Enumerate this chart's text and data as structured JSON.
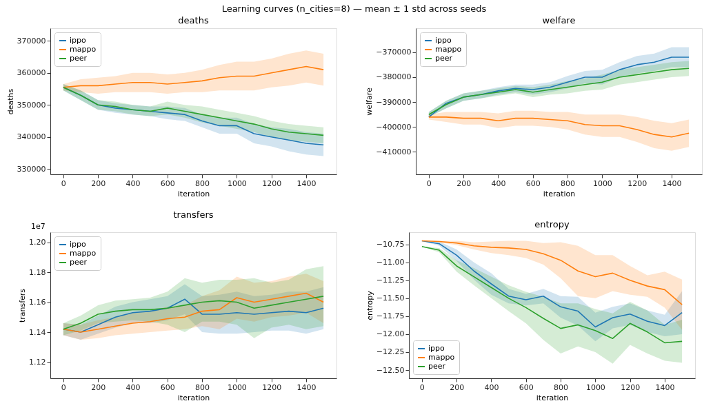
{
  "chart_data": [
    {
      "type": "line",
      "title": "deaths",
      "xlabel": "iteration",
      "ylabel": "deaths",
      "annotations": [
        "Learning curves (n_cities=8) — mean ± 1 std across seeds"
      ],
      "legend": "top left",
      "grid": false,
      "xlim": [
        -75,
        1575
      ],
      "xticks": [
        0,
        200,
        400,
        600,
        800,
        1000,
        1200,
        1400
      ],
      "ylim": [
        328300,
        373950
      ],
      "yticks": [
        330000,
        340000,
        350000,
        360000,
        370000
      ],
      "x": [
        0,
        100,
        200,
        300,
        400,
        500,
        600,
        700,
        800,
        900,
        1000,
        1100,
        1200,
        1300,
        1400,
        1500
      ],
      "series": [
        {
          "name": "ippo",
          "color": "#1f77b4",
          "values": [
            355500,
            353000,
            350000,
            349000,
            348500,
            348000,
            347500,
            347000,
            345000,
            343500,
            343500,
            341000,
            340000,
            339000,
            338000,
            337500
          ],
          "lower": [
            354500,
            351500,
            348500,
            347500,
            347000,
            346500,
            345500,
            345000,
            343000,
            341000,
            341000,
            338000,
            337000,
            335500,
            334500,
            334000
          ],
          "upper": [
            356500,
            354500,
            351500,
            350500,
            350000,
            349500,
            349500,
            349000,
            347000,
            346000,
            346000,
            344000,
            343000,
            342500,
            341500,
            341000
          ]
        },
        {
          "name": "mappo",
          "color": "#ff7f0e",
          "values": [
            355500,
            356000,
            356000,
            356500,
            357000,
            357000,
            356500,
            357000,
            357500,
            358500,
            359000,
            359000,
            360000,
            361000,
            362000,
            361000
          ],
          "lower": [
            354500,
            354000,
            353500,
            354000,
            354000,
            354000,
            353500,
            354000,
            354000,
            354500,
            354500,
            354500,
            355500,
            356000,
            357000,
            356000
          ],
          "upper": [
            356500,
            358000,
            358500,
            359000,
            360000,
            360000,
            359500,
            360000,
            361000,
            362500,
            363500,
            363500,
            364500,
            366000,
            367000,
            366000
          ]
        },
        {
          "name": "peer",
          "color": "#2ca02c",
          "values": [
            355500,
            353000,
            350000,
            349500,
            348500,
            348000,
            349000,
            348000,
            347000,
            346000,
            345000,
            344000,
            342500,
            341500,
            341000,
            340500
          ],
          "lower": [
            354500,
            351500,
            348500,
            348000,
            347000,
            346500,
            347000,
            346000,
            344500,
            343500,
            342500,
            341500,
            340000,
            339000,
            338500,
            338000
          ],
          "upper": [
            356500,
            354500,
            351500,
            351000,
            350000,
            349500,
            351000,
            350000,
            349500,
            348500,
            347500,
            346500,
            345000,
            344000,
            343500,
            343000
          ]
        }
      ]
    },
    {
      "type": "line",
      "title": "welfare",
      "xlabel": "iteration",
      "ylabel": "welfare",
      "legend": "top left",
      "grid": false,
      "xlim": [
        -75,
        1575
      ],
      "xticks": [
        0,
        200,
        400,
        600,
        800,
        1000,
        1200,
        1400
      ],
      "ylim": [
        -419000,
        -360370
      ],
      "yticks": [
        {
          "value": -410000,
          "label": "−410000"
        },
        {
          "value": -400000,
          "label": "−400000"
        },
        {
          "value": -390000,
          "label": "−390000"
        },
        {
          "value": -380000,
          "label": "−380000"
        },
        {
          "value": -370000,
          "label": "−370000"
        }
      ],
      "x": [
        0,
        100,
        200,
        300,
        400,
        500,
        600,
        700,
        800,
        900,
        1000,
        1100,
        1200,
        1300,
        1400,
        1500
      ],
      "series": [
        {
          "name": "ippo",
          "color": "#1f77b4",
          "values": [
            -396000,
            -390500,
            -388000,
            -387000,
            -385500,
            -384500,
            -385000,
            -384000,
            -382000,
            -380000,
            -380000,
            -377000,
            -375000,
            -374000,
            -372000,
            -372000
          ],
          "lower": [
            -396000,
            -392500,
            -389500,
            -388500,
            -387000,
            -386000,
            -387000,
            -386000,
            -384500,
            -382500,
            -383000,
            -380000,
            -378500,
            -377500,
            -376000,
            -376000
          ],
          "upper": [
            -394000,
            -389500,
            -386500,
            -385500,
            -384000,
            -383000,
            -383000,
            -382000,
            -379500,
            -377500,
            -377000,
            -374000,
            -371500,
            -370500,
            -368000,
            -368000
          ]
        },
        {
          "name": "mappo",
          "color": "#ff7f0e",
          "values": [
            -396000,
            -396000,
            -396500,
            -396500,
            -397500,
            -396500,
            -396500,
            -397000,
            -397500,
            -399000,
            -399500,
            -399500,
            -401000,
            -403000,
            -404000,
            -402500
          ],
          "lower": [
            -397000,
            -398000,
            -399000,
            -399000,
            -400500,
            -399500,
            -399500,
            -400000,
            -401000,
            -403000,
            -404000,
            -404000,
            -406000,
            -408500,
            -409500,
            -408000
          ],
          "upper": [
            -395000,
            -394000,
            -394000,
            -394000,
            -394500,
            -393500,
            -393500,
            -394000,
            -394000,
            -395000,
            -395000,
            -395000,
            -396000,
            -397500,
            -398500,
            -397000
          ]
        },
        {
          "name": "peer",
          "color": "#2ca02c",
          "values": [
            -395000,
            -391000,
            -388000,
            -387000,
            -386000,
            -385000,
            -386000,
            -385000,
            -384000,
            -383000,
            -382000,
            -380000,
            -379000,
            -378000,
            -377000,
            -376500
          ],
          "lower": [
            -396000,
            -392500,
            -389500,
            -388500,
            -387500,
            -386500,
            -388000,
            -387000,
            -386500,
            -385500,
            -385000,
            -383000,
            -382000,
            -381000,
            -380000,
            -379500
          ],
          "upper": [
            -394000,
            -389500,
            -386500,
            -385500,
            -384500,
            -383500,
            -384000,
            -383000,
            -381500,
            -380500,
            -379000,
            -377000,
            -376000,
            -375000,
            -374000,
            -373500
          ]
        }
      ]
    },
    {
      "type": "line",
      "title": "transfers",
      "xlabel": "iteration",
      "ylabel": "transfers",
      "annotations": [
        "1e7"
      ],
      "legend": "top left",
      "grid": false,
      "xlim": [
        -75,
        1575
      ],
      "xticks": [
        0,
        200,
        400,
        600,
        800,
        1000,
        1200,
        1400
      ],
      "ylim": [
        1.1092,
        1.2067
      ],
      "yticks": [
        1.12,
        1.14,
        1.16,
        1.18,
        {
          "value": 1.2,
          "label": "1.20"
        }
      ],
      "x": [
        0,
        100,
        200,
        300,
        400,
        500,
        600,
        700,
        800,
        900,
        1000,
        1100,
        1200,
        1300,
        1400,
        1500
      ],
      "series": [
        {
          "name": "ippo",
          "color": "#1f77b4",
          "values": [
            1.142,
            1.14,
            1.145,
            1.15,
            1.153,
            1.154,
            1.156,
            1.162,
            1.152,
            1.152,
            1.153,
            1.152,
            1.153,
            1.154,
            1.153,
            1.156
          ],
          "lower": [
            1.138,
            1.135,
            1.139,
            1.143,
            1.146,
            1.146,
            1.148,
            1.152,
            1.14,
            1.139,
            1.139,
            1.14,
            1.141,
            1.141,
            1.139,
            1.142
          ],
          "upper": [
            1.146,
            1.145,
            1.151,
            1.157,
            1.16,
            1.162,
            1.164,
            1.172,
            1.164,
            1.165,
            1.167,
            1.164,
            1.165,
            1.167,
            1.167,
            1.17
          ]
        },
        {
          "name": "mappo",
          "color": "#ff7f0e",
          "values": [
            1.142,
            1.14,
            1.142,
            1.144,
            1.146,
            1.147,
            1.149,
            1.15,
            1.154,
            1.155,
            1.163,
            1.16,
            1.162,
            1.164,
            1.166,
            1.16
          ],
          "lower": [
            1.138,
            1.135,
            1.136,
            1.138,
            1.139,
            1.14,
            1.141,
            1.142,
            1.144,
            1.142,
            1.149,
            1.147,
            1.15,
            1.151,
            1.153,
            1.146
          ],
          "upper": [
            1.146,
            1.145,
            1.148,
            1.15,
            1.153,
            1.154,
            1.157,
            1.158,
            1.164,
            1.168,
            1.177,
            1.173,
            1.174,
            1.177,
            1.179,
            1.174
          ]
        },
        {
          "name": "peer",
          "color": "#2ca02c",
          "values": [
            1.142,
            1.146,
            1.152,
            1.154,
            1.155,
            1.155,
            1.156,
            1.158,
            1.16,
            1.161,
            1.16,
            1.156,
            1.158,
            1.16,
            1.162,
            1.164
          ],
          "lower": [
            1.138,
            1.141,
            1.146,
            1.147,
            1.148,
            1.147,
            1.145,
            1.14,
            1.147,
            1.147,
            1.145,
            1.136,
            1.143,
            1.145,
            1.142,
            1.144
          ],
          "upper": [
            1.146,
            1.151,
            1.158,
            1.161,
            1.162,
            1.163,
            1.167,
            1.176,
            1.173,
            1.175,
            1.175,
            1.176,
            1.173,
            1.175,
            1.182,
            1.184
          ]
        }
      ]
    },
    {
      "type": "line",
      "title": "entropy",
      "xlabel": "iteration",
      "ylabel": "entropy",
      "legend": "bottom left",
      "grid": false,
      "xlim": [
        -75,
        1575
      ],
      "xticks": [
        0,
        200,
        400,
        600,
        800,
        1000,
        1200,
        1400
      ],
      "ylim": [
        -12.615,
        -10.58
      ],
      "yticks": [
        {
          "value": -12.5,
          "label": "−12.50"
        },
        {
          "value": -12.25,
          "label": "−12.25"
        },
        {
          "value": -12.0,
          "label": "−12.00"
        },
        {
          "value": -11.75,
          "label": "−11.75"
        },
        {
          "value": -11.5,
          "label": "−11.50"
        },
        {
          "value": -11.25,
          "label": "−11.25"
        },
        {
          "value": -11.0,
          "label": "−11.00"
        },
        {
          "value": -10.75,
          "label": "−10.75"
        }
      ],
      "x": [
        0,
        100,
        200,
        300,
        400,
        500,
        600,
        700,
        800,
        900,
        1000,
        1100,
        1200,
        1300,
        1400,
        1500
      ],
      "series": [
        {
          "name": "ippo",
          "color": "#1f77b4",
          "values": [
            -10.7,
            -10.74,
            -10.9,
            -11.12,
            -11.3,
            -11.47,
            -11.52,
            -11.47,
            -11.62,
            -11.68,
            -11.9,
            -11.77,
            -11.72,
            -11.82,
            -11.88,
            -11.7
          ],
          "lower": [
            -10.7,
            -10.77,
            -10.98,
            -11.24,
            -11.45,
            -11.57,
            -11.6,
            -11.57,
            -11.77,
            -11.88,
            -12.1,
            -11.92,
            -11.87,
            -11.97,
            -12.03,
            -12.0
          ],
          "upper": [
            -10.7,
            -10.71,
            -10.82,
            -11.0,
            -11.15,
            -11.37,
            -11.44,
            -11.37,
            -11.47,
            -11.48,
            -11.7,
            -11.62,
            -11.57,
            -11.67,
            -11.73,
            -11.4
          ]
        },
        {
          "name": "mappo",
          "color": "#ff7f0e",
          "values": [
            -10.7,
            -10.71,
            -10.73,
            -10.77,
            -10.79,
            -10.8,
            -10.82,
            -10.88,
            -10.97,
            -11.12,
            -11.2,
            -11.15,
            -11.25,
            -11.33,
            -11.38,
            -11.59
          ],
          "lower": [
            -10.7,
            -10.72,
            -10.76,
            -10.82,
            -10.87,
            -10.9,
            -10.94,
            -11.03,
            -11.22,
            -11.47,
            -11.5,
            -11.4,
            -11.45,
            -11.48,
            -11.63,
            -11.94
          ],
          "upper": [
            -10.7,
            -10.7,
            -10.7,
            -10.72,
            -10.71,
            -10.7,
            -10.7,
            -10.73,
            -10.72,
            -10.77,
            -10.9,
            -10.9,
            -11.05,
            -11.18,
            -11.13,
            -11.24
          ]
        },
        {
          "name": "peer",
          "color": "#2ca02c",
          "values": [
            -10.78,
            -10.83,
            -11.05,
            -11.2,
            -11.35,
            -11.5,
            -11.63,
            -11.78,
            -11.92,
            -11.87,
            -11.95,
            -12.06,
            -11.85,
            -11.97,
            -12.12,
            -12.1
          ],
          "lower": [
            -10.78,
            -10.86,
            -11.13,
            -11.32,
            -11.5,
            -11.68,
            -11.85,
            -12.08,
            -12.27,
            -12.17,
            -12.25,
            -12.41,
            -12.15,
            -12.27,
            -12.37,
            -12.4
          ],
          "upper": [
            -10.78,
            -10.8,
            -10.97,
            -11.08,
            -11.2,
            -11.32,
            -11.41,
            -11.48,
            -11.57,
            -11.57,
            -11.65,
            -11.71,
            -11.55,
            -11.67,
            -11.87,
            -11.8
          ]
        }
      ]
    }
  ]
}
